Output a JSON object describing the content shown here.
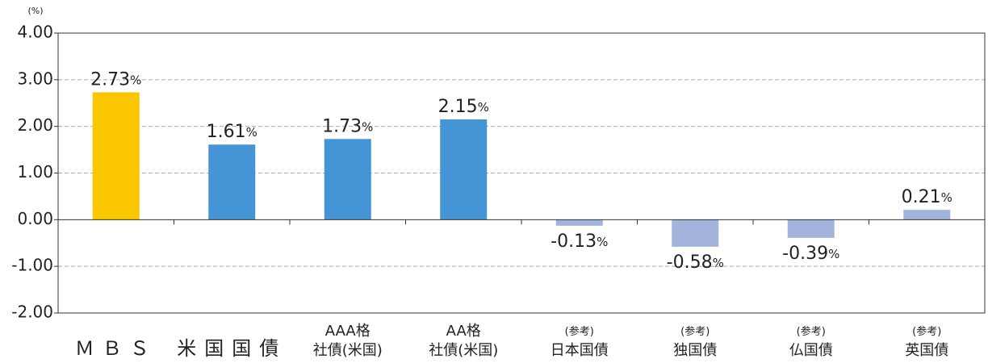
{
  "chart_data": {
    "type": "bar",
    "y_unit": "(%)",
    "categories": [
      "ＭＢＳ",
      "米国国債",
      "AAA格\n社債(米国)",
      "AA格\n社債(米国)",
      "(参考)\n日本国債",
      "(参考)\n独国債",
      "(参考)\n仏国債",
      "(参考)\n英国債"
    ],
    "values": [
      2.73,
      1.61,
      1.73,
      2.15,
      -0.13,
      -0.58,
      -0.39,
      0.21
    ],
    "value_labels": [
      "2.73%",
      "1.61%",
      "1.73%",
      "2.15%",
      "-0.13%",
      "-0.58%",
      "-0.39%",
      "0.21%"
    ],
    "colors": [
      "#f9c600",
      "#4494d6",
      "#4494d6",
      "#4494d6",
      "#a2b4dc",
      "#a2b4dc",
      "#a2b4dc",
      "#a2b4dc"
    ],
    "ylim": [
      -2,
      4
    ],
    "yticks": [
      {
        "value": -2,
        "label": "-2.00"
      },
      {
        "value": -1,
        "label": "-1.00"
      },
      {
        "value": 0,
        "label": "0.00"
      },
      {
        "value": 1,
        "label": "1.00"
      },
      {
        "value": 2,
        "label": "2.00"
      },
      {
        "value": 3,
        "label": "3.00"
      },
      {
        "value": 4,
        "label": "4.00"
      }
    ],
    "grid": true
  }
}
